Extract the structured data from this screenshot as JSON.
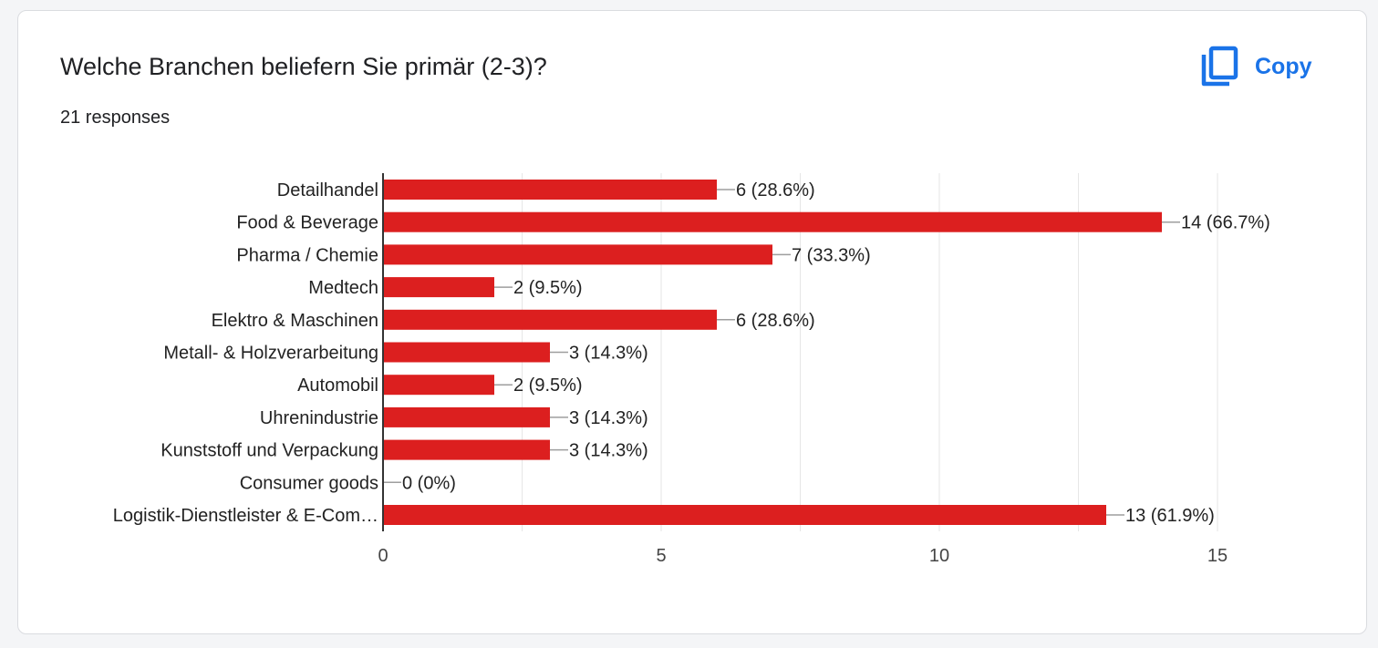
{
  "question": {
    "title": "Welche Branchen beliefern Sie primär (2-3)?",
    "responses": "21 responses"
  },
  "copy_button": {
    "label": "Copy",
    "icon": "copy-icon",
    "color": "#1a73e8"
  },
  "chart_data": {
    "type": "bar",
    "orientation": "horizontal",
    "categories": [
      "Detailhandel",
      "Food & Beverage",
      "Pharma / Chemie",
      "Medtech",
      "Elektro & Maschinen",
      "Metall- & Holzverarbeitung",
      "Automobil",
      "Uhrenindustrie",
      "Kunststoff und Verpackung",
      "Consumer goods",
      "Logistik-Dienstleister & E-Com…"
    ],
    "values": [
      6,
      14,
      7,
      2,
      6,
      3,
      2,
      3,
      3,
      0,
      13
    ],
    "data_labels": [
      "6 (28.6%)",
      "14 (66.7%)",
      "7 (33.3%)",
      "2 (9.5%)",
      "6 (28.6%)",
      "3 (14.3%)",
      "2 (9.5%)",
      "3 (14.3%)",
      "3 (14.3%)",
      "0 (0%)",
      "13 (61.9%)"
    ],
    "xlim": [
      0,
      15
    ],
    "x_ticks": [
      0,
      5,
      10,
      15
    ],
    "bar_color": "#dc1f1f",
    "grid": true
  }
}
